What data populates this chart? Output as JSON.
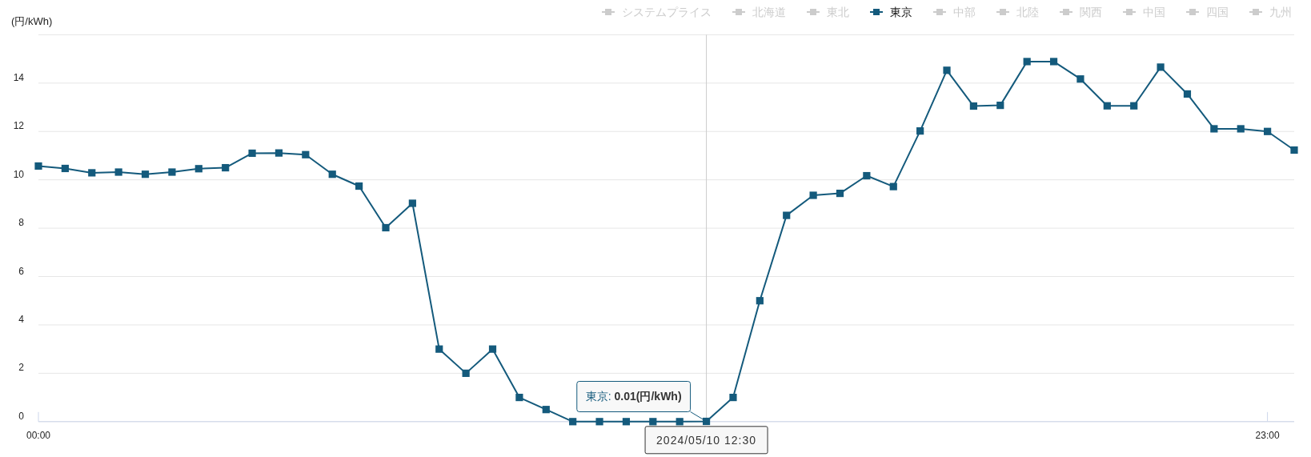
{
  "chart_data": {
    "type": "line",
    "ylabel": "(円/kWh)",
    "x": [
      0,
      0.5,
      1,
      1.5,
      2,
      2.5,
      3,
      3.5,
      4,
      4.5,
      5,
      5.5,
      6,
      6.5,
      7,
      7.5,
      8,
      8.5,
      9,
      9.5,
      10,
      10.5,
      11,
      11.5,
      12,
      12.5,
      13,
      13.5,
      14,
      14.5,
      15,
      15.5,
      16,
      16.5,
      17,
      17.5,
      18,
      18.5,
      19,
      19.5,
      20,
      20.5,
      21,
      21.5,
      22,
      22.5,
      23,
      23.5
    ],
    "xlim": [
      0,
      23.5
    ],
    "xticks": [
      {
        "value": 0,
        "label": "00:00"
      },
      {
        "value": 23,
        "label": "23:00"
      }
    ],
    "ylim": [
      0,
      16
    ],
    "yticks": [
      0,
      2,
      4,
      6,
      8,
      10,
      12,
      14,
      {
        "value": 16,
        "label": null
      }
    ],
    "grid": "y",
    "legend": "top right",
    "marker": "square",
    "line_style": "solid",
    "series": [
      {
        "name": "システムプライス",
        "color": "#cccccc",
        "values": [
          null,
          null,
          null,
          null,
          null,
          null,
          null,
          null,
          null,
          null,
          null,
          null,
          null,
          null,
          null,
          null,
          null,
          null,
          null,
          null,
          null,
          null,
          null,
          null,
          null,
          null,
          null,
          null,
          null,
          null,
          null,
          null,
          null,
          null,
          null,
          null,
          null,
          null,
          null,
          null,
          null,
          null,
          null,
          null,
          null,
          null,
          null,
          null
        ]
      },
      {
        "name": "北海道",
        "color": "#cccccc",
        "values": [
          null,
          null,
          null,
          null,
          null,
          null,
          null,
          null,
          null,
          null,
          null,
          null,
          null,
          null,
          null,
          null,
          null,
          null,
          null,
          null,
          null,
          null,
          null,
          null,
          null,
          null,
          null,
          null,
          null,
          null,
          null,
          null,
          null,
          null,
          null,
          null,
          null,
          null,
          null,
          null,
          null,
          null,
          null,
          null,
          null,
          null,
          null,
          null
        ]
      },
      {
        "name": "東北",
        "color": "#cccccc",
        "values": [
          null,
          null,
          null,
          null,
          null,
          null,
          null,
          null,
          null,
          null,
          null,
          null,
          null,
          null,
          null,
          null,
          null,
          null,
          null,
          null,
          null,
          null,
          null,
          null,
          null,
          null,
          null,
          null,
          null,
          null,
          null,
          null,
          null,
          null,
          null,
          null,
          null,
          null,
          null,
          null,
          null,
          null,
          null,
          null,
          null,
          null,
          null,
          null
        ]
      },
      {
        "name": "東京",
        "color": "#145a7c",
        "values": [
          10.57,
          10.47,
          10.29,
          10.32,
          10.23,
          10.32,
          10.46,
          10.5,
          11.1,
          11.11,
          11.04,
          10.23,
          9.74,
          8.02,
          9.03,
          3.0,
          2.0,
          3.0,
          1.0,
          0.5,
          0,
          0,
          0,
          0,
          0,
          0.01,
          1.0,
          5.0,
          8.53,
          9.36,
          9.44,
          10.17,
          9.72,
          12.02,
          14.53,
          13.05,
          13.08,
          14.89,
          14.89,
          14.17,
          13.06,
          13.06,
          14.66,
          13.55,
          12.11,
          12.11,
          12.0,
          11.23
        ]
      },
      {
        "name": "中部",
        "color": "#cccccc",
        "values": [
          null,
          null,
          null,
          null,
          null,
          null,
          null,
          null,
          null,
          null,
          null,
          null,
          null,
          null,
          null,
          null,
          null,
          null,
          null,
          null,
          null,
          null,
          null,
          null,
          null,
          null,
          null,
          null,
          null,
          null,
          null,
          null,
          null,
          null,
          null,
          null,
          null,
          null,
          null,
          null,
          null,
          null,
          null,
          null,
          null,
          null,
          null,
          null
        ]
      },
      {
        "name": "北陸",
        "color": "#cccccc",
        "values": [
          null,
          null,
          null,
          null,
          null,
          null,
          null,
          null,
          null,
          null,
          null,
          null,
          null,
          null,
          null,
          null,
          null,
          null,
          null,
          null,
          null,
          null,
          null,
          null,
          null,
          null,
          null,
          null,
          null,
          null,
          null,
          null,
          null,
          null,
          null,
          null,
          null,
          null,
          null,
          null,
          null,
          null,
          null,
          null,
          null,
          null,
          null,
          null
        ]
      },
      {
        "name": "関西",
        "color": "#cccccc",
        "values": [
          null,
          null,
          null,
          null,
          null,
          null,
          null,
          null,
          null,
          null,
          null,
          null,
          null,
          null,
          null,
          null,
          null,
          null,
          null,
          null,
          null,
          null,
          null,
          null,
          null,
          null,
          null,
          null,
          null,
          null,
          null,
          null,
          null,
          null,
          null,
          null,
          null,
          null,
          null,
          null,
          null,
          null,
          null,
          null,
          null,
          null,
          null,
          null
        ]
      },
      {
        "name": "中国",
        "color": "#cccccc",
        "values": [
          null,
          null,
          null,
          null,
          null,
          null,
          null,
          null,
          null,
          null,
          null,
          null,
          null,
          null,
          null,
          null,
          null,
          null,
          null,
          null,
          null,
          null,
          null,
          null,
          null,
          null,
          null,
          null,
          null,
          null,
          null,
          null,
          null,
          null,
          null,
          null,
          null,
          null,
          null,
          null,
          null,
          null,
          null,
          null,
          null,
          null,
          null,
          null
        ]
      },
      {
        "name": "四国",
        "color": "#cccccc",
        "values": [
          null,
          null,
          null,
          null,
          null,
          null,
          null,
          null,
          null,
          null,
          null,
          null,
          null,
          null,
          null,
          null,
          null,
          null,
          null,
          null,
          null,
          null,
          null,
          null,
          null,
          null,
          null,
          null,
          null,
          null,
          null,
          null,
          null,
          null,
          null,
          null,
          null,
          null,
          null,
          null,
          null,
          null,
          null,
          null,
          null,
          null,
          null,
          null
        ]
      },
      {
        "name": "九州",
        "color": "#cccccc",
        "values": [
          null,
          null,
          null,
          null,
          null,
          null,
          null,
          null,
          null,
          null,
          null,
          null,
          null,
          null,
          null,
          null,
          null,
          null,
          null,
          null,
          null,
          null,
          null,
          null,
          null,
          null,
          null,
          null,
          null,
          null,
          null,
          null,
          null,
          null,
          null,
          null,
          null,
          null,
          null,
          null,
          null,
          null,
          null,
          null,
          null,
          null,
          null,
          null
        ]
      }
    ],
    "ref_lines": [
      {
        "axis": "x",
        "value": 12.5,
        "label": "2024/05/10 12:30",
        "color": "#cccccc"
      }
    ],
    "annotations": [
      {
        "text": "東京: 0.01(円/kWh)",
        "x": 12.5,
        "y": 0.01
      }
    ]
  }
}
